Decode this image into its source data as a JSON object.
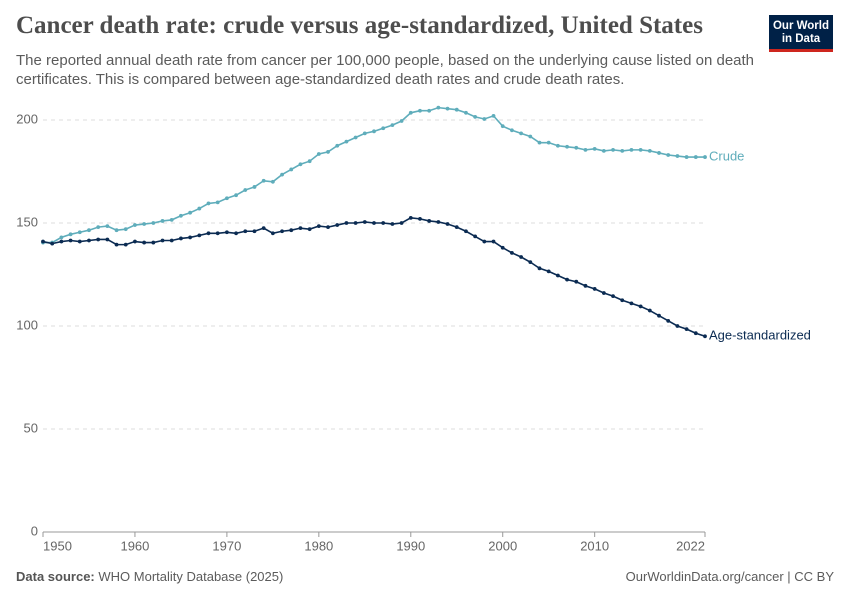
{
  "chart_data": {
    "type": "line",
    "title": "Cancer death rate: crude versus age-standardized, United States",
    "subtitle": "The reported annual death rate from cancer per 100,000 people, based on the underlying cause listed on death certificates. This is compared between age-standardized death rates and crude death rates.",
    "logo": [
      "Our World",
      "in Data"
    ],
    "source_label": "Data source:",
    "source": "WHO Mortality Database (2025)",
    "credit": "OurWorldinData.org/cancer | CC BY",
    "x": [
      1950,
      1951,
      1952,
      1953,
      1954,
      1955,
      1956,
      1957,
      1958,
      1959,
      1960,
      1961,
      1962,
      1963,
      1964,
      1965,
      1966,
      1967,
      1968,
      1969,
      1970,
      1971,
      1972,
      1973,
      1974,
      1975,
      1976,
      1977,
      1978,
      1979,
      1980,
      1981,
      1982,
      1983,
      1984,
      1985,
      1986,
      1987,
      1988,
      1989,
      1990,
      1991,
      1992,
      1993,
      1994,
      1995,
      1996,
      1997,
      1998,
      1999,
      2000,
      2001,
      2002,
      2003,
      2004,
      2005,
      2006,
      2007,
      2008,
      2009,
      2010,
      2011,
      2012,
      2013,
      2014,
      2015,
      2016,
      2017,
      2018,
      2019,
      2020,
      2021,
      2022
    ],
    "xlim": [
      1950,
      2022
    ],
    "xticks": [
      1950,
      1960,
      1970,
      1980,
      1990,
      2000,
      2010,
      2022
    ],
    "ylim": [
      0,
      200
    ],
    "yticks": [
      0,
      50,
      100,
      150,
      200
    ],
    "grid": true,
    "series": [
      {
        "name": "Crude",
        "color": "#5fadbb",
        "values": [
          140.5,
          140.5,
          143,
          144.5,
          145.5,
          146.5,
          148,
          148.5,
          146.5,
          147,
          149,
          149.5,
          150,
          151,
          151.5,
          153.5,
          155,
          157,
          159.5,
          160,
          162,
          163.5,
          166,
          167.5,
          170.5,
          170,
          173.5,
          176,
          178.5,
          180,
          183.5,
          184.5,
          187.5,
          189.5,
          191.5,
          193.5,
          194.5,
          196,
          197.5,
          199.5,
          203.5,
          204.5,
          204.5,
          206,
          205.5,
          205,
          203.5,
          201.5,
          200.5,
          202,
          197,
          195,
          193.5,
          192,
          189,
          189,
          187.5,
          187,
          186.5,
          185.5,
          186,
          185,
          185.5,
          185,
          185.5,
          185.5,
          185,
          184,
          183,
          182.5,
          182,
          182,
          182
        ]
      },
      {
        "name": "Age-standardized",
        "color": "#0b2b52",
        "values": [
          141,
          140,
          141,
          141.5,
          141,
          141.5,
          142,
          142,
          139.5,
          139.5,
          141,
          140.5,
          140.5,
          141.5,
          141.5,
          142.5,
          143,
          144,
          145,
          145,
          145.5,
          145,
          146,
          146,
          147.5,
          145,
          146,
          146.5,
          147.5,
          147,
          148.5,
          148,
          149,
          150,
          150,
          150.5,
          150,
          150,
          149.5,
          150,
          152.5,
          152,
          151,
          150.5,
          149.5,
          148,
          146,
          143.5,
          141,
          141,
          138,
          135.5,
          133.5,
          131,
          128,
          126.5,
          124.5,
          122.5,
          121.5,
          119.5,
          118,
          116,
          114.5,
          112.5,
          111,
          109.5,
          107.5,
          105,
          102.5,
          100,
          98.5,
          96.5,
          95
        ]
      }
    ]
  }
}
